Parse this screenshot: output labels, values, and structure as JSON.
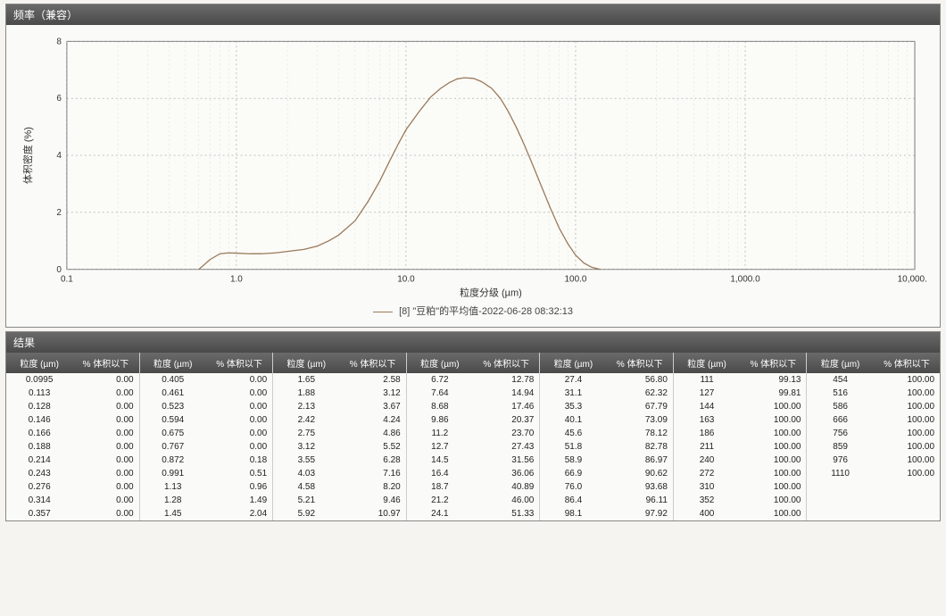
{
  "chart_panel": {
    "title": "频率（兼容）",
    "chart": {
      "type": "line",
      "x_axis_label": "粒度分级 (µm)",
      "y_axis_label": "体积密度 (%)",
      "x_scale": "log",
      "xlim": [
        0.1,
        10000
      ],
      "x_ticks": [
        0.1,
        1.0,
        10.0,
        100.0,
        1000.0,
        10000.0
      ],
      "x_tick_labels": [
        "0.1",
        "1.0",
        "10.0",
        "100.0",
        "1,000.0",
        "10,000.0"
      ],
      "ylim": [
        0,
        8
      ],
      "y_ticks": [
        0,
        2,
        4,
        6,
        8
      ],
      "line_color": "#9a7a5a",
      "line_width": 1.3,
      "grid_color": "#888888",
      "grid_dash": "2,3",
      "background_color": "#fbfbf8",
      "axis_color": "#555555",
      "tick_fontsize": 10,
      "label_fontsize": 11,
      "data": [
        [
          0.6,
          0.0
        ],
        [
          0.7,
          0.35
        ],
        [
          0.8,
          0.55
        ],
        [
          0.9,
          0.58
        ],
        [
          1.0,
          0.57
        ],
        [
          1.2,
          0.55
        ],
        [
          1.4,
          0.55
        ],
        [
          1.7,
          0.58
        ],
        [
          2.0,
          0.63
        ],
        [
          2.5,
          0.7
        ],
        [
          3.0,
          0.82
        ],
        [
          3.5,
          1.0
        ],
        [
          4.0,
          1.2
        ],
        [
          5.0,
          1.7
        ],
        [
          6.0,
          2.4
        ],
        [
          7.0,
          3.1
        ],
        [
          8.0,
          3.8
        ],
        [
          9.0,
          4.4
        ],
        [
          10.0,
          4.9
        ],
        [
          12.0,
          5.55
        ],
        [
          14.0,
          6.05
        ],
        [
          16.0,
          6.35
        ],
        [
          18.0,
          6.55
        ],
        [
          20.0,
          6.68
        ],
        [
          22.0,
          6.72
        ],
        [
          25.0,
          6.7
        ],
        [
          28.0,
          6.58
        ],
        [
          32.0,
          6.35
        ],
        [
          36.0,
          6.0
        ],
        [
          40.0,
          5.55
        ],
        [
          45.0,
          4.95
        ],
        [
          50.0,
          4.35
        ],
        [
          56.0,
          3.65
        ],
        [
          63.0,
          2.9
        ],
        [
          71.0,
          2.15
        ],
        [
          80.0,
          1.45
        ],
        [
          90.0,
          0.9
        ],
        [
          100.0,
          0.5
        ],
        [
          112.0,
          0.22
        ],
        [
          125.0,
          0.07
        ],
        [
          140.0,
          0.0
        ]
      ]
    },
    "legend_text": "[8] \"豆粕\"的平均值-2022-06-28 08:32:13"
  },
  "results_panel": {
    "title": "结果",
    "col_header_size": "粒度 (µm)",
    "col_header_pct": "% 体积以下",
    "columns": [
      [
        [
          "0.0995",
          "0.00"
        ],
        [
          "0.113",
          "0.00"
        ],
        [
          "0.128",
          "0.00"
        ],
        [
          "0.146",
          "0.00"
        ],
        [
          "0.166",
          "0.00"
        ],
        [
          "0.188",
          "0.00"
        ],
        [
          "0.214",
          "0.00"
        ],
        [
          "0.243",
          "0.00"
        ],
        [
          "0.276",
          "0.00"
        ],
        [
          "0.314",
          "0.00"
        ],
        [
          "0.357",
          "0.00"
        ]
      ],
      [
        [
          "0.405",
          "0.00"
        ],
        [
          "0.461",
          "0.00"
        ],
        [
          "0.523",
          "0.00"
        ],
        [
          "0.594",
          "0.00"
        ],
        [
          "0.675",
          "0.00"
        ],
        [
          "0.767",
          "0.00"
        ],
        [
          "0.872",
          "0.18"
        ],
        [
          "0.991",
          "0.51"
        ],
        [
          "1.13",
          "0.96"
        ],
        [
          "1.28",
          "1.49"
        ],
        [
          "1.45",
          "2.04"
        ]
      ],
      [
        [
          "1.65",
          "2.58"
        ],
        [
          "1.88",
          "3.12"
        ],
        [
          "2.13",
          "3.67"
        ],
        [
          "2.42",
          "4.24"
        ],
        [
          "2.75",
          "4.86"
        ],
        [
          "3.12",
          "5.52"
        ],
        [
          "3.55",
          "6.28"
        ],
        [
          "4.03",
          "7.16"
        ],
        [
          "4.58",
          "8.20"
        ],
        [
          "5.21",
          "9.46"
        ],
        [
          "5.92",
          "10.97"
        ]
      ],
      [
        [
          "6.72",
          "12.78"
        ],
        [
          "7.64",
          "14.94"
        ],
        [
          "8.68",
          "17.46"
        ],
        [
          "9.86",
          "20.37"
        ],
        [
          "11.2",
          "23.70"
        ],
        [
          "12.7",
          "27.43"
        ],
        [
          "14.5",
          "31.56"
        ],
        [
          "16.4",
          "36.06"
        ],
        [
          "18.7",
          "40.89"
        ],
        [
          "21.2",
          "46.00"
        ],
        [
          "24.1",
          "51.33"
        ]
      ],
      [
        [
          "27.4",
          "56.80"
        ],
        [
          "31.1",
          "62.32"
        ],
        [
          "35.3",
          "67.79"
        ],
        [
          "40.1",
          "73.09"
        ],
        [
          "45.6",
          "78.12"
        ],
        [
          "51.8",
          "82.78"
        ],
        [
          "58.9",
          "86.97"
        ],
        [
          "66.9",
          "90.62"
        ],
        [
          "76.0",
          "93.68"
        ],
        [
          "86.4",
          "96.11"
        ],
        [
          "98.1",
          "97.92"
        ]
      ],
      [
        [
          "111",
          "99.13"
        ],
        [
          "127",
          "99.81"
        ],
        [
          "144",
          "100.00"
        ],
        [
          "163",
          "100.00"
        ],
        [
          "186",
          "100.00"
        ],
        [
          "211",
          "100.00"
        ],
        [
          "240",
          "100.00"
        ],
        [
          "272",
          "100.00"
        ],
        [
          "310",
          "100.00"
        ],
        [
          "352",
          "100.00"
        ],
        [
          "400",
          "100.00"
        ]
      ],
      [
        [
          "454",
          "100.00"
        ],
        [
          "516",
          "100.00"
        ],
        [
          "586",
          "100.00"
        ],
        [
          "666",
          "100.00"
        ],
        [
          "756",
          "100.00"
        ],
        [
          "859",
          "100.00"
        ],
        [
          "976",
          "100.00"
        ],
        [
          "1110",
          "100.00"
        ]
      ]
    ]
  }
}
